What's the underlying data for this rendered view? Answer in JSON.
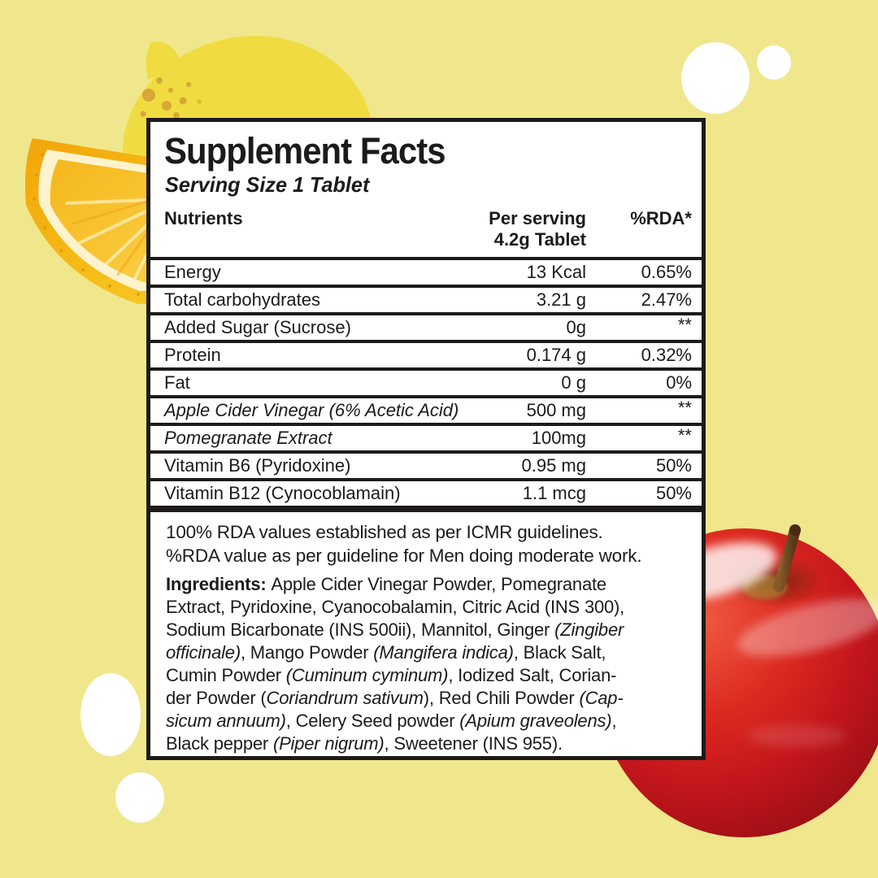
{
  "background": {
    "color": "#f0e78c",
    "elements": [
      "lemon-illustration",
      "lemon-slice-image",
      "apple-image",
      "white-circle-decor"
    ]
  },
  "colors": {
    "card_bg": "#fffffe",
    "border_and_text": "#1d1b1a",
    "lemon_flat": "#f0dc41",
    "lemon_dots": "#d8a736",
    "lemon_rind": "#f3ac0c",
    "lemon_pulp": "#f6bc21",
    "apple_red": "#c4161c",
    "decor_circle": "#ffffff"
  },
  "panel": {
    "title": "Supplement Facts",
    "serving_size": "Serving Size 1 Tablet",
    "columns": {
      "nutrients": "Nutrients",
      "per_serving": "Per serving",
      "per_serving_sub": "4.2g Tablet",
      "rda": "%RDA*"
    },
    "rows": [
      {
        "name": "Energy",
        "italic": false,
        "amount": "13 Kcal",
        "rda": "0.65%"
      },
      {
        "name": "Total carbohydrates",
        "italic": false,
        "amount": "3.21 g",
        "rda": "2.47%"
      },
      {
        "name": "Added Sugar (Sucrose)",
        "italic": false,
        "amount": "0g",
        "rda": "**"
      },
      {
        "name": "Protein",
        "italic": false,
        "amount": "0.174 g",
        "rda": "0.32%"
      },
      {
        "name": "Fat",
        "italic": false,
        "amount": "0 g",
        "rda": "0%"
      },
      {
        "name": "Apple Cider Vinegar (6% Acetic Acid)",
        "italic": true,
        "amount": "500 mg",
        "rda": "**"
      },
      {
        "name": "Pomegranate Extract",
        "italic": true,
        "amount": "100mg",
        "rda": "**"
      },
      {
        "name": "Vitamin B6 (Pyridoxine)",
        "italic": false,
        "amount": "0.95 mg",
        "rda": "50%"
      },
      {
        "name": "Vitamin B12 (Cynocoblamain)",
        "italic": false,
        "amount": "1.1 mcg",
        "rda": "50%"
      }
    ],
    "notes": [
      "100% RDA values established as per ICMR guidelines.",
      "%RDA value as per guideline for Men doing moderate work."
    ],
    "ingredients_lines": [
      [
        {
          "t": "Ingredients: ",
          "b": true
        },
        {
          "t": "Apple Cider Vinegar Powder, Pomegranate"
        }
      ],
      [
        {
          "t": "Extract, Pyridoxine, Cyanocobalamin, Citric Acid (INS 300),"
        }
      ],
      [
        {
          "t": "Sodium Bicarbonate (INS 500ii), Mannitol, Ginger "
        },
        {
          "t": "(Zingiber",
          "i": true
        }
      ],
      [
        {
          "t": "officinale)",
          "i": true
        },
        {
          "t": ", Mango Powder "
        },
        {
          "t": "(Mangifera indica)",
          "i": true
        },
        {
          "t": ", Black Salt,"
        }
      ],
      [
        {
          "t": "Cumin Powder "
        },
        {
          "t": "(Cuminum cyminum)",
          "i": true
        },
        {
          "t": ", Iodized Salt, Corian-"
        }
      ],
      [
        {
          "t": "der Powder ("
        },
        {
          "t": "Coriandrum sativum",
          "i": true
        },
        {
          "t": "), Red Chili Powder "
        },
        {
          "t": "(Cap-",
          "i": true
        }
      ],
      [
        {
          "t": "sicum annuum)",
          "i": true
        },
        {
          "t": ", Celery Seed powder "
        },
        {
          "t": "(Apium graveolens)",
          "i": true
        },
        {
          "t": ","
        }
      ],
      [
        {
          "t": "Black pepper "
        },
        {
          "t": "(Piper nigrum)",
          "i": true
        },
        {
          "t": ", Sweetener (INS 955)."
        }
      ]
    ]
  }
}
